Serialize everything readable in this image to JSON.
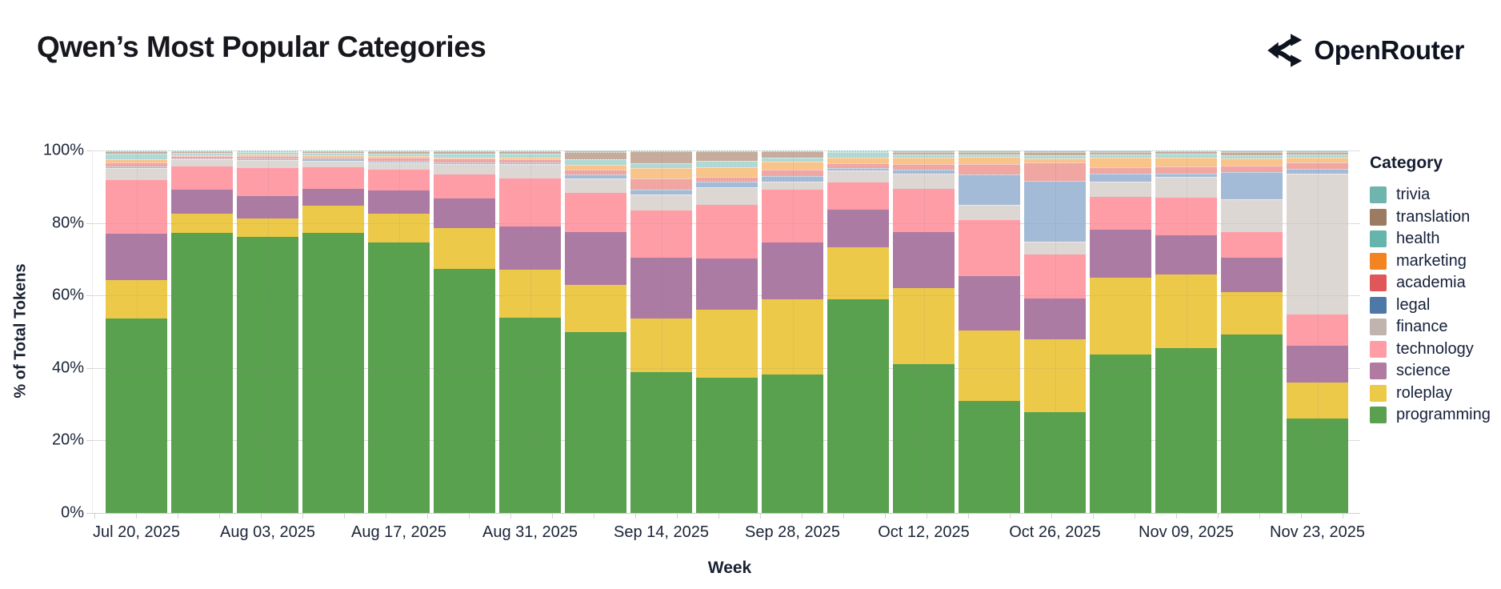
{
  "header": {
    "title": "Qwen’s Most Popular Categories",
    "brand": "OpenRouter"
  },
  "chart_data": {
    "type": "bar",
    "stacked": true,
    "normalized_percent": true,
    "title": "Qwen’s Most Popular Categories",
    "xlabel": "Week",
    "ylabel": "% of Total Tokens",
    "ylim": [
      0,
      100
    ],
    "grid": true,
    "legend_position": "right",
    "legend_title": "Category",
    "y_tick_labels": [
      "0%",
      "20%",
      "40%",
      "60%",
      "80%",
      "100%"
    ],
    "categories": [
      "Jul 20, 2025",
      "Jul 27, 2025",
      "Aug 03, 2025",
      "Aug 10, 2025",
      "Aug 17, 2025",
      "Aug 24, 2025",
      "Aug 31, 2025",
      "Sep 07, 2025",
      "Sep 14, 2025",
      "Sep 21, 2025",
      "Sep 28, 2025",
      "Oct 05, 2025",
      "Oct 12, 2025",
      "Oct 19, 2025",
      "Oct 26, 2025",
      "Nov 02, 2025",
      "Nov 09, 2025",
      "Nov 16, 2025",
      "Nov 23, 2025"
    ],
    "x_tick_labels": [
      "Jul 20, 2025",
      "Aug 03, 2025",
      "Aug 17, 2025",
      "Aug 31, 2025",
      "Sep 14, 2025",
      "Sep 28, 2025",
      "Oct 12, 2025",
      "Oct 26, 2025",
      "Nov 09, 2025",
      "Nov 23, 2025"
    ],
    "series_note": "series listed bottom-to-top of stack; values are % of total tokens per week",
    "series": [
      {
        "name": "programming",
        "bar_color": "#59A14F",
        "legend_color": "#59A14F",
        "light": false,
        "values": [
          53.6,
          77.3,
          76.2,
          77.3,
          74.7,
          67.3,
          53.9,
          49.9,
          38.8,
          37.4,
          38.3,
          59.0,
          41.1,
          30.8,
          27.8,
          43.8,
          45.5,
          49.2,
          26.0
        ]
      },
      {
        "name": "roleplay",
        "bar_color": "#EDC949",
        "legend_color": "#EDC948",
        "light": false,
        "values": [
          10.6,
          5.2,
          5.1,
          7.4,
          7.9,
          11.3,
          13.3,
          13.0,
          14.8,
          18.7,
          20.6,
          14.4,
          20.9,
          19.5,
          20.1,
          21.2,
          20.2,
          11.7,
          9.9
        ]
      },
      {
        "name": "science",
        "bar_color": "#AC7BA4",
        "legend_color": "#B07AA1",
        "light": false,
        "values": [
          12.9,
          6.6,
          6.1,
          4.7,
          6.3,
          8.1,
          11.8,
          14.6,
          16.9,
          14.0,
          15.8,
          10.3,
          15.6,
          15.0,
          11.2,
          13.2,
          11.0,
          9.6,
          10.3
        ]
      },
      {
        "name": "technology",
        "bar_color": "#FF9DA7",
        "legend_color": "#FF9DA7",
        "light": false,
        "values": [
          14.7,
          6.6,
          7.9,
          5.9,
          5.9,
          6.6,
          13.3,
          10.9,
          12.9,
          14.9,
          14.4,
          7.5,
          11.8,
          15.5,
          12.1,
          9.0,
          10.3,
          7.0,
          8.6
        ]
      },
      {
        "name": "finance",
        "bar_color": "#DDD7D4",
        "legend_color": "#BFB5AE",
        "light": true,
        "values": [
          3.3,
          1.8,
          2.1,
          1.9,
          2.0,
          2.9,
          3.9,
          3.9,
          4.4,
          4.8,
          2.4,
          3.2,
          4.3,
          4.2,
          3.7,
          4.3,
          5.7,
          9.0,
          38.9
        ]
      },
      {
        "name": "legal",
        "bar_color": "#A3BBD6",
        "legend_color": "#4E79A7",
        "light": true,
        "values": [
          0.6,
          0.4,
          0.4,
          0.5,
          0.4,
          0.5,
          0.5,
          1.0,
          1.4,
          1.5,
          1.5,
          0.7,
          1.1,
          8.5,
          16.7,
          2.2,
          1.0,
          7.5,
          1.2
        ]
      },
      {
        "name": "academia",
        "bar_color": "#F0A6A1",
        "legend_color": "#E05759",
        "light": true,
        "values": [
          1.1,
          0.5,
          0.8,
          0.6,
          0.9,
          1.0,
          0.9,
          1.5,
          3.0,
          1.5,
          1.8,
          1.3,
          1.4,
          2.7,
          5.0,
          1.6,
          2.0,
          1.9,
          1.7
        ]
      },
      {
        "name": "marketing",
        "bar_color": "#F8C489",
        "legend_color": "#F28522",
        "light": true,
        "values": [
          0.7,
          0.3,
          0.4,
          0.4,
          0.3,
          0.3,
          0.4,
          1.2,
          2.9,
          2.6,
          2.2,
          1.6,
          1.9,
          2.0,
          1.2,
          2.8,
          2.4,
          1.8,
          1.5
        ]
      },
      {
        "name": "health",
        "bar_color": "#B0D9D5",
        "legend_color": "#65B5AD",
        "light": true,
        "values": [
          1.7,
          0.6,
          0.6,
          0.7,
          0.8,
          1.1,
          1.1,
          1.5,
          1.5,
          1.8,
          1.1,
          1.5,
          0.9,
          0.8,
          1.0,
          0.9,
          1.1,
          1.1,
          0.9
        ]
      },
      {
        "name": "translation",
        "bar_color": "#C6AC9C",
        "legend_color": "#9C7B63",
        "light": true,
        "values": [
          0.6,
          0.5,
          0.3,
          0.4,
          0.5,
          0.6,
          0.6,
          2.0,
          3.2,
          2.6,
          1.7,
          0.3,
          0.6,
          0.6,
          0.8,
          0.6,
          0.5,
          0.8,
          0.6
        ]
      },
      {
        "name": "trivia",
        "bar_color": "#9AD0CA",
        "legend_color": "#6FB5AD",
        "light": true,
        "values": [
          0.2,
          0.2,
          0.1,
          0.2,
          0.3,
          0.3,
          0.3,
          0.5,
          0.2,
          0.2,
          0.2,
          0.2,
          0.4,
          0.4,
          0.4,
          0.4,
          0.3,
          0.4,
          0.4
        ]
      }
    ],
    "legend_order_top_to_bottom": [
      "trivia",
      "translation",
      "health",
      "marketing",
      "academia",
      "legal",
      "finance",
      "technology",
      "science",
      "roleplay",
      "programming"
    ]
  }
}
